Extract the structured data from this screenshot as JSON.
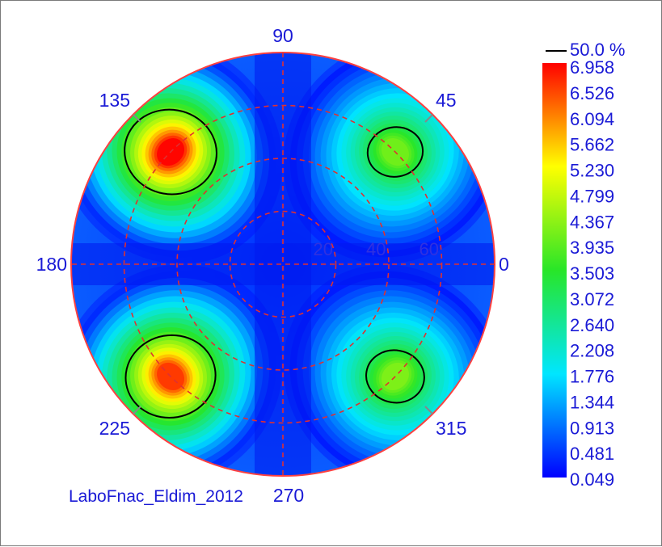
{
  "chart_data": {
    "type": "heatmap",
    "subtype": "polar-conoscope",
    "source_label": "LaboFnac_Eldim_2012",
    "angle_labels": [
      "0",
      "45",
      "90",
      "135",
      "180",
      "225",
      "270",
      "315"
    ],
    "radial_labels": [
      "20",
      "40",
      "60"
    ],
    "radial_max": 80,
    "colorbar": {
      "contour_label": "50.0 %",
      "ticks": [
        "6.958",
        "6.526",
        "6.094",
        "5.662",
        "5.230",
        "4.799",
        "4.367",
        "3.935",
        "3.503",
        "3.072",
        "2.640",
        "2.208",
        "1.776",
        "1.344",
        "0.913",
        "0.481",
        "0.049"
      ],
      "min": 0.049,
      "max": 6.958,
      "colormap": "jet"
    },
    "lobes": [
      {
        "azimuth": 135,
        "polar": 60,
        "peak": 6.958
      },
      {
        "azimuth": 225,
        "polar": 60,
        "peak": 6.6
      },
      {
        "azimuth": 45,
        "polar": 60,
        "peak": 4.1
      },
      {
        "azimuth": 315,
        "polar": 60,
        "peak": 4.2
      }
    ],
    "contour_level_percent": 50.0,
    "grid": true,
    "grid_color": "#e03030",
    "legend_position": "right"
  }
}
